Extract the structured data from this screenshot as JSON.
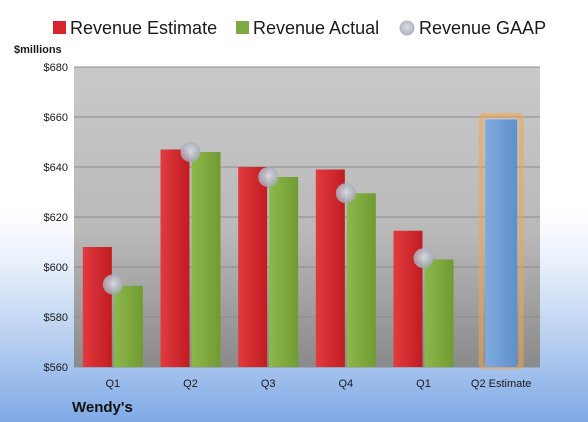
{
  "chart_data": {
    "type": "bar",
    "legend": [
      {
        "name": "Revenue Estimate",
        "color": "#d7262b",
        "marker": "square"
      },
      {
        "name": "Revenue Actual",
        "color": "#7eaa3f",
        "marker": "square"
      },
      {
        "name": "Revenue GAAP",
        "color": "#b8bcc8",
        "marker": "circle"
      }
    ],
    "legend_position": "top",
    "unit_label": "$millions",
    "company": "Wendy's",
    "categories": [
      "Q1",
      "Q2",
      "Q3",
      "Q4",
      "Q1",
      "Q2 Estimate"
    ],
    "ylim": [
      560,
      680
    ],
    "yticks": [
      560,
      580,
      600,
      620,
      640,
      660,
      680
    ],
    "ytick_labels": [
      "$560",
      "$580",
      "$600",
      "$620",
      "$640",
      "$660",
      "$680"
    ],
    "grid": true,
    "series": [
      {
        "name": "Revenue Estimate",
        "color": "#d7262b",
        "values": [
          608,
          647,
          640,
          639,
          614.5,
          null
        ]
      },
      {
        "name": "Revenue Actual",
        "color": "#7eaa3f",
        "values": [
          592.5,
          646,
          636,
          629.5,
          603,
          null
        ]
      },
      {
        "name": "Revenue GAAP",
        "color": "#b8bcc8",
        "values": [
          593,
          646,
          636,
          629.5,
          603.5,
          null
        ]
      },
      {
        "name": "Q2 Estimate",
        "color": "#6f9fd8",
        "highlight": "#f2a54a",
        "values": [
          null,
          null,
          null,
          null,
          null,
          659
        ]
      }
    ]
  }
}
